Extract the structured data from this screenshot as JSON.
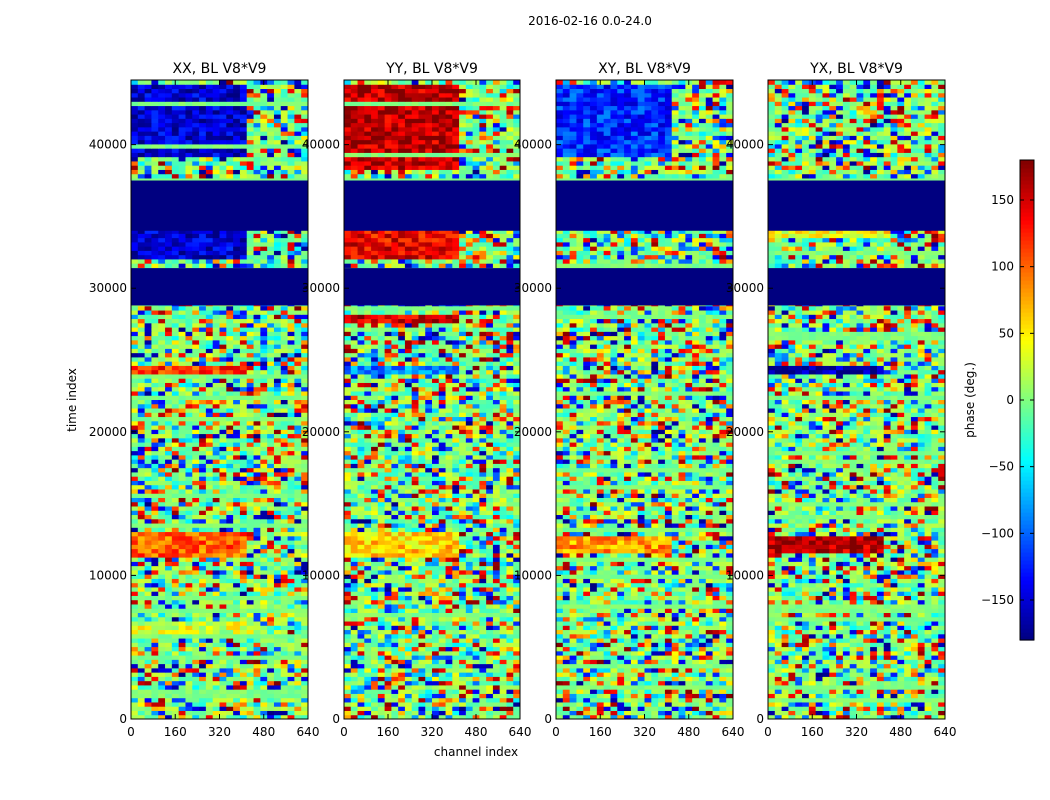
{
  "figure": {
    "suptitle": "2016-02-16 0.0-24.0",
    "colorbar_label": "phase (deg.)",
    "colorbar_ticks": [
      "150",
      "100",
      "50",
      "0",
      "−50",
      "−100",
      "−150"
    ],
    "colorbar_tick_values": [
      150,
      100,
      50,
      0,
      -50,
      -100,
      -150
    ],
    "colorbar_range": [
      -180,
      180
    ],
    "xlabel": "channel index",
    "ylabel": "time index"
  },
  "chart_data": [
    {
      "type": "heatmap",
      "title": "XX, BL V8*V9",
      "xlabel": "channel index",
      "ylabel": "time index",
      "xlim": [
        0,
        640
      ],
      "ylim": [
        0,
        44500
      ],
      "x_ticks": [
        0,
        160,
        320,
        480,
        640
      ],
      "y_ticks": [
        0,
        10000,
        20000,
        30000,
        40000
      ],
      "x_tick_labels": [
        "0",
        "160",
        "320",
        "480",
        "640"
      ],
      "y_tick_labels": [
        "0",
        "10000",
        "20000",
        "30000",
        "40000"
      ],
      "value_range": [
        -180,
        180
      ],
      "flagged_time_ranges": [
        [
          28800,
          31400
        ],
        [
          34000,
          37500
        ]
      ],
      "flagged_value": -180,
      "bands": [
        [
          5800,
          6600,
          30
        ],
        [
          11000,
          12800,
          100
        ],
        [
          24000,
          24600,
          120
        ],
        [
          39000,
          44000,
          -150
        ],
        [
          32000,
          34000,
          -150
        ]
      ]
    },
    {
      "type": "heatmap",
      "title": "YY, BL V8*V9",
      "xlabel": "channel index",
      "ylabel": "time index",
      "xlim": [
        0,
        640
      ],
      "ylim": [
        0,
        44500
      ],
      "x_ticks": [
        0,
        160,
        320,
        480,
        640
      ],
      "y_ticks": [
        0,
        10000,
        20000,
        30000,
        40000
      ],
      "x_tick_labels": [
        "0",
        "160",
        "320",
        "480",
        "640"
      ],
      "y_tick_labels": [
        "0",
        "10000",
        "20000",
        "30000",
        "40000"
      ],
      "value_range": [
        -180,
        180
      ],
      "flagged_time_ranges": [
        [
          28800,
          31400
        ],
        [
          34000,
          37500
        ]
      ],
      "flagged_value": -180,
      "bands": [
        [
          38000,
          44000,
          160
        ],
        [
          32000,
          34000,
          140
        ],
        [
          27500,
          28100,
          150
        ],
        [
          24000,
          24600,
          -90
        ],
        [
          11000,
          12800,
          60
        ]
      ]
    },
    {
      "type": "heatmap",
      "title": "XY, BL V8*V9",
      "xlabel": "channel index",
      "ylabel": "time index",
      "xlim": [
        0,
        640
      ],
      "ylim": [
        0,
        44500
      ],
      "x_ticks": [
        0,
        160,
        320,
        480,
        640
      ],
      "y_ticks": [
        0,
        10000,
        20000,
        30000,
        40000
      ],
      "x_tick_labels": [
        "0",
        "160",
        "320",
        "480",
        "640"
      ],
      "y_tick_labels": [
        "0",
        "10000",
        "20000",
        "30000",
        "40000"
      ],
      "value_range": [
        -180,
        180
      ],
      "flagged_time_ranges": [
        [
          28800,
          31400
        ],
        [
          34000,
          37500
        ]
      ],
      "flagged_value": -180,
      "bands": [
        [
          11500,
          12500,
          80
        ],
        [
          39000,
          44000,
          -120
        ]
      ]
    },
    {
      "type": "heatmap",
      "title": "YX, BL V8*V9",
      "xlabel": "channel index",
      "ylabel": "time index",
      "xlim": [
        0,
        640
      ],
      "ylim": [
        0,
        44500
      ],
      "x_ticks": [
        0,
        160,
        320,
        480,
        640
      ],
      "y_ticks": [
        0,
        10000,
        20000,
        30000,
        40000
      ],
      "x_tick_labels": [
        "0",
        "160",
        "320",
        "480",
        "640"
      ],
      "y_tick_labels": [
        "0",
        "10000",
        "20000",
        "30000",
        "40000"
      ],
      "value_range": [
        -180,
        180
      ],
      "flagged_time_ranges": [
        [
          28800,
          31400
        ],
        [
          34000,
          37500
        ]
      ],
      "flagged_value": -180,
      "bands": [
        [
          11500,
          12600,
          160
        ],
        [
          23800,
          24500,
          -170
        ],
        [
          33300,
          33900,
          40
        ]
      ]
    }
  ]
}
